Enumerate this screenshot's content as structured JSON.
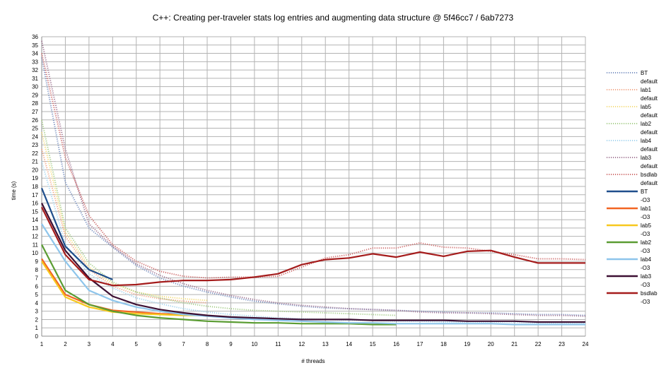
{
  "chart_data": {
    "type": "line",
    "title": "C++: Creating per-traveler stats log entries and augmenting data structure @ 5f46cc7 / 6ab7273",
    "xlabel": "# threads",
    "ylabel": "time (s)",
    "xlim": [
      1,
      24
    ],
    "ylim": [
      0,
      36
    ],
    "x_ticks": [
      1,
      2,
      3,
      4,
      5,
      6,
      7,
      8,
      9,
      10,
      11,
      12,
      13,
      14,
      15,
      16,
      17,
      18,
      19,
      20,
      21,
      22,
      23,
      24
    ],
    "y_ticks": [
      0,
      1,
      2,
      3,
      4,
      5,
      6,
      7,
      8,
      9,
      10,
      11,
      12,
      13,
      14,
      15,
      16,
      17,
      18,
      19,
      20,
      21,
      22,
      23,
      24,
      25,
      26,
      27,
      28,
      29,
      30,
      31,
      32,
      33,
      34,
      35,
      36
    ],
    "grid": true,
    "legend_position": "right",
    "series": [
      {
        "name": "BT default",
        "label1": "BT",
        "label2": "default",
        "color": "#7f96c4",
        "style": "dotted",
        "x": [
          1,
          2,
          3,
          4,
          5,
          6,
          7,
          8,
          9,
          10,
          11,
          12,
          13,
          14,
          15,
          16,
          17,
          18,
          19,
          20,
          21,
          22,
          23,
          24
        ],
        "values": [
          33.5,
          18.5,
          13.0,
          10.7,
          8.5,
          7.0,
          6.0,
          5.3,
          4.7,
          4.2,
          3.9,
          3.6,
          3.4,
          3.3,
          3.2,
          3.1,
          3.0,
          2.9,
          2.8,
          2.8,
          2.7,
          2.6,
          2.6,
          2.5
        ]
      },
      {
        "name": "lab1 default",
        "label1": "lab1",
        "label2": "default",
        "color": "#f2a98a",
        "style": "dotted",
        "x": [
          1,
          2,
          3,
          4,
          5,
          6,
          7,
          8
        ],
        "values": [
          22.5,
          12.0,
          8.0,
          6.0,
          5.0,
          4.5,
          4.2,
          4.0
        ]
      },
      {
        "name": "lab5 default",
        "label1": "lab5",
        "label2": "default",
        "color": "#f4dc7e",
        "style": "dotted",
        "x": [
          1,
          2,
          3,
          4,
          5,
          6,
          7,
          8
        ],
        "values": [
          24.5,
          12.5,
          8.3,
          6.3,
          5.3,
          4.8,
          4.5,
          4.3
        ]
      },
      {
        "name": "lab2 default",
        "label1": "lab2",
        "label2": "default",
        "color": "#a9cf8e",
        "style": "dotted",
        "x": [
          1,
          2,
          3,
          4,
          5,
          6,
          7,
          8,
          9,
          10,
          11,
          12,
          13,
          14,
          15,
          16
        ],
        "values": [
          26.0,
          13.0,
          8.8,
          6.5,
          5.3,
          4.6,
          4.0,
          3.6,
          3.3,
          3.1,
          3.0,
          2.9,
          2.8,
          2.7,
          2.6,
          2.5
        ]
      },
      {
        "name": "lab4 default",
        "label1": "lab4",
        "label2": "default",
        "color": "#a7d6ef",
        "style": "dotted",
        "x": [
          1,
          2,
          3,
          4,
          5,
          6,
          7,
          8,
          9,
          10,
          11,
          12,
          13,
          14,
          15,
          16,
          17,
          18,
          19,
          20,
          21,
          22,
          23,
          24
        ],
        "values": [
          21.0,
          11.0,
          7.5,
          5.8,
          4.6,
          3.9,
          3.3,
          2.9,
          2.6,
          2.4,
          2.2,
          2.1,
          2.0,
          1.9,
          1.9,
          1.8,
          1.8,
          1.7,
          1.7,
          1.7,
          1.7,
          1.6,
          1.6,
          1.6
        ]
      },
      {
        "name": "lab3 default",
        "label1": "lab3",
        "label2": "default",
        "color": "#a57d99",
        "style": "dotted",
        "x": [
          1,
          2,
          3,
          4,
          5,
          6,
          7,
          8,
          9,
          10,
          11,
          12,
          13,
          14,
          15,
          16,
          17,
          18,
          19,
          20,
          21,
          22,
          23,
          24
        ],
        "values": [
          35.5,
          22.5,
          13.5,
          10.8,
          8.7,
          7.3,
          6.3,
          5.5,
          4.9,
          4.4,
          4.0,
          3.7,
          3.5,
          3.3,
          3.2,
          3.1,
          2.9,
          2.8,
          2.8,
          2.7,
          2.6,
          2.5,
          2.5,
          2.4
        ]
      },
      {
        "name": "bsdlab default",
        "label1": "bsdlab",
        "label2": "default",
        "color": "#cf6f6f",
        "style": "dotted",
        "x": [
          1,
          2,
          3,
          4,
          5,
          6,
          7,
          8,
          9,
          10,
          11,
          12,
          13,
          14,
          15,
          16,
          17,
          18,
          19,
          20,
          21,
          22,
          23,
          24
        ],
        "values": [
          34.0,
          21.5,
          14.5,
          11.0,
          9.0,
          7.8,
          7.2,
          7.0,
          7.1,
          7.1,
          7.2,
          8.3,
          9.4,
          9.8,
          10.6,
          10.6,
          11.2,
          10.7,
          10.6,
          10.2,
          9.8,
          9.3,
          9.3,
          9.2
        ]
      },
      {
        "name": "BT -O3",
        "label1": "BT",
        "label2": "-O3",
        "color": "#1f4e8c",
        "style": "solid",
        "x": [
          1,
          2,
          3,
          4
        ],
        "values": [
          17.8,
          10.8,
          8.0,
          6.8
        ]
      },
      {
        "name": "lab1 -O3",
        "label1": "lab1",
        "label2": "-O3",
        "color": "#f26522",
        "style": "solid",
        "x": [
          1,
          2,
          3,
          4,
          5,
          6,
          7,
          8
        ],
        "values": [
          9.3,
          5.0,
          3.8,
          3.1,
          2.9,
          2.7,
          2.6,
          2.5
        ]
      },
      {
        "name": "lab5 -O3",
        "label1": "lab5",
        "label2": "-O3",
        "color": "#f7c81e",
        "style": "solid",
        "x": [
          1,
          2,
          3,
          4,
          5,
          6,
          7,
          8
        ],
        "values": [
          9.0,
          4.7,
          3.5,
          2.9,
          2.7,
          2.6,
          2.5,
          2.5
        ]
      },
      {
        "name": "lab2 -O3",
        "label1": "lab2",
        "label2": "-O3",
        "color": "#5a9c32",
        "style": "solid",
        "x": [
          1,
          2,
          3,
          4,
          5,
          6,
          7,
          8,
          9,
          10,
          11,
          12,
          13,
          14,
          15,
          16
        ],
        "values": [
          11.0,
          5.5,
          3.8,
          3.0,
          2.5,
          2.2,
          2.0,
          1.8,
          1.7,
          1.6,
          1.6,
          1.5,
          1.5,
          1.5,
          1.4,
          1.4
        ]
      },
      {
        "name": "lab4 -O3",
        "label1": "lab4",
        "label2": "-O3",
        "color": "#8ec5eb",
        "style": "solid",
        "x": [
          1,
          2,
          3,
          4,
          5,
          6,
          7,
          8,
          9,
          10,
          11,
          12,
          13,
          14,
          15,
          16,
          17,
          18,
          19,
          20,
          21,
          22,
          23,
          24
        ],
        "values": [
          13.5,
          9.0,
          5.5,
          4.3,
          3.5,
          3.0,
          2.6,
          2.4,
          2.2,
          2.0,
          1.9,
          1.8,
          1.7,
          1.6,
          1.6,
          1.5,
          1.5,
          1.5,
          1.5,
          1.5,
          1.4,
          1.4,
          1.4,
          1.4
        ]
      },
      {
        "name": "lab3 -O3",
        "label1": "lab3",
        "label2": "-O3",
        "color": "#3d1033",
        "style": "solid",
        "x": [
          1,
          2,
          3,
          4,
          5,
          6,
          7,
          8,
          9,
          10,
          11,
          12,
          13,
          14,
          15,
          16,
          17,
          18,
          19,
          20,
          21,
          22,
          23,
          24
        ],
        "values": [
          16.0,
          10.3,
          7.0,
          4.8,
          3.8,
          3.2,
          2.8,
          2.5,
          2.3,
          2.2,
          2.1,
          2.0,
          2.0,
          2.0,
          1.9,
          1.9,
          1.9,
          1.9,
          1.8,
          1.8,
          1.8,
          1.7,
          1.7,
          1.7
        ]
      },
      {
        "name": "bsdlab -O3",
        "label1": "bsdlab",
        "label2": "-O3",
        "color": "#a51c1c",
        "style": "solid",
        "x": [
          1,
          2,
          3,
          4,
          5,
          6,
          7,
          8,
          9,
          10,
          11,
          12,
          13,
          14,
          15,
          16,
          17,
          18,
          19,
          20,
          21,
          22,
          23,
          24
        ],
        "values": [
          15.5,
          9.8,
          6.8,
          6.1,
          6.2,
          6.5,
          6.7,
          6.7,
          6.8,
          7.1,
          7.5,
          8.6,
          9.2,
          9.4,
          9.9,
          9.5,
          10.1,
          9.6,
          10.2,
          10.3,
          9.5,
          8.8,
          8.8,
          8.8
        ]
      }
    ]
  }
}
